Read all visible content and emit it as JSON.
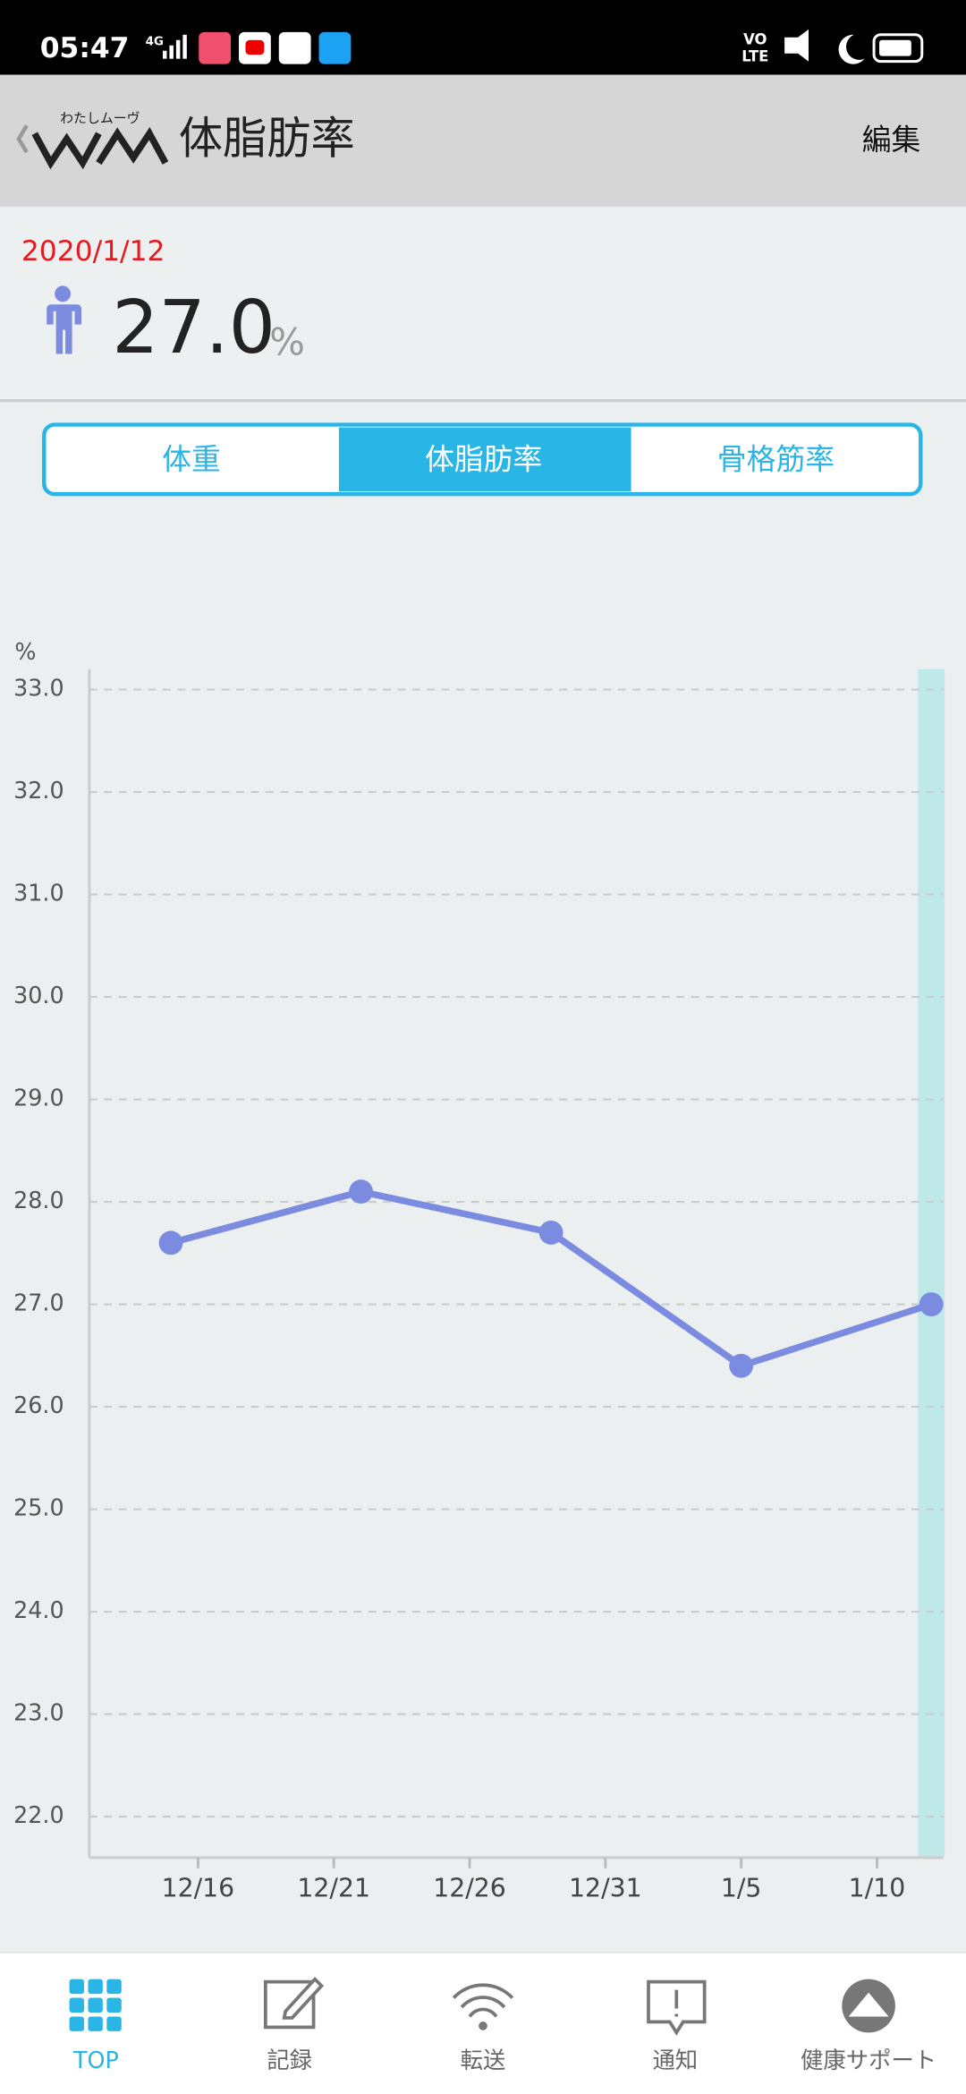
{
  "status_bar": {
    "time": "05:47",
    "network": "4G",
    "volte": [
      "VO",
      "LTE"
    ]
  },
  "header": {
    "logo_caption": "わたしムーヴ",
    "title": "体脂肪率",
    "action": "編集"
  },
  "summary": {
    "date": "2020/1/12",
    "value": "27.0",
    "unit": "%"
  },
  "tabs": {
    "items": [
      "体重",
      "体脂肪率",
      "骨格筋率"
    ],
    "selected": 1
  },
  "chart_data": {
    "type": "line",
    "y_unit": "%",
    "x": [
      "12/15",
      "12/22",
      "12/29",
      "1/5",
      "1/12"
    ],
    "values": [
      27.6,
      28.1,
      27.7,
      26.4,
      27.0
    ],
    "color": "#7b8be0",
    "highlight": "1/12",
    "highlight_color": "#bfe9e8",
    "xlim": [
      "12/12",
      "1/12"
    ],
    "xticks": [
      "12/16",
      "12/21",
      "12/26",
      "12/31",
      "1/5",
      "1/10"
    ],
    "ylim": [
      21.6,
      33.2
    ],
    "yticks": [
      {
        "value": 22,
        "label": "22.0"
      },
      {
        "value": 23,
        "label": "23.0"
      },
      {
        "value": 24,
        "label": "24.0"
      },
      {
        "value": 25,
        "label": "25.0"
      },
      {
        "value": 26,
        "label": "26.0"
      },
      {
        "value": 27,
        "label": "27.0"
      },
      {
        "value": 28,
        "label": "28.0"
      },
      {
        "value": 29,
        "label": "29.0"
      },
      {
        "value": 30,
        "label": "30.0"
      },
      {
        "value": 31,
        "label": "31.0"
      },
      {
        "value": 32,
        "label": "32.0"
      },
      {
        "value": 33,
        "label": "33.0"
      }
    ],
    "grid": true
  },
  "nav": {
    "items": [
      "TOP",
      "記録",
      "転送",
      "通知",
      "健康サポート"
    ],
    "selected": 0
  }
}
